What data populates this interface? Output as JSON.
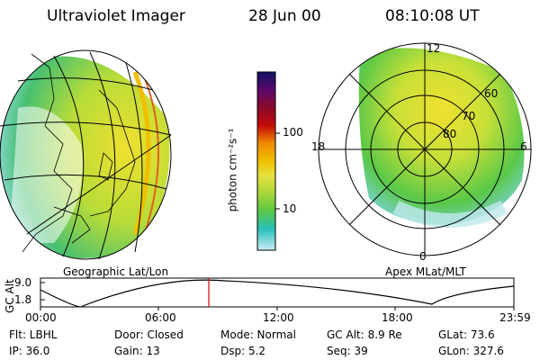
{
  "header": {
    "title": "Ultraviolet Imager",
    "date": "28 Jun 00",
    "time": "08:10:08 UT"
  },
  "left_panel": {
    "label": "Geographic Lat/Lon"
  },
  "right_panel": {
    "label": "Apex  MLat/MLT",
    "mlt_labels": [
      "12",
      "18",
      "6",
      "0"
    ],
    "lat_labels": [
      "60",
      "70",
      "80"
    ]
  },
  "colorbar": {
    "unit_label": "photon cm⁻²s⁻¹",
    "ticks": [
      "100",
      "10"
    ],
    "scale": "log",
    "colors": [
      "#111166",
      "#5a0a6b",
      "#8a0a2a",
      "#c40a0a",
      "#f08a00",
      "#f0c000",
      "#e8e040",
      "#a8d838",
      "#5ac848",
      "#28c0b8",
      "#c8ecf4"
    ]
  },
  "timeline": {
    "axis_label": "GC Alt",
    "y_ticks": [
      "9.0",
      "1.8"
    ],
    "x_ticks": [
      "00:00",
      "06:00",
      "12:00",
      "18:00",
      "23:59"
    ],
    "marker_color": "#dd0000"
  },
  "footer": {
    "row1": [
      {
        "label": "Flt: LBHL"
      },
      {
        "label": "Door: Closed"
      },
      {
        "label": "Mode: Normal"
      },
      {
        "label": "GC Alt: 8.9 Re"
      },
      {
        "label": "GLat:  73.6"
      }
    ],
    "row2": [
      {
        "label": "IP: 36.0"
      },
      {
        "label": "Gain: 13"
      },
      {
        "label": "Dsp:    5.2"
      },
      {
        "label": "Seq: 39"
      },
      {
        "label": "GLon: 327.6"
      }
    ]
  }
}
